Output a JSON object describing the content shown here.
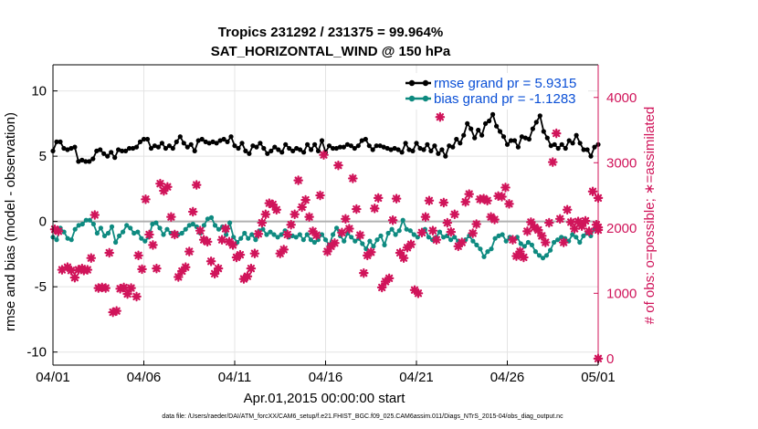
{
  "chart_data": {
    "type": "line",
    "title": "Tropics 231292 / 231375 = 99.964%",
    "subtitle": "SAT_HORIZONTAL_WIND @ 150 hPa",
    "xlabel": "Apr.01,2015 00:00:00 start",
    "ylabel": "rmse and bias (model - observation)",
    "ylabel_right": "# of obs: o=possible; ∗=assimilated",
    "footnote": "data file: /Users/raeder/DAI/ATM_forcXX/CAM6_setup/f.e21.FHIST_BGC.f09_025.CAM6assim.011/Diags_NTrS_2015-04/obs_diag_output.nc",
    "x_tick_labels": [
      "04/01",
      "04/06",
      "04/11",
      "04/16",
      "04/21",
      "04/26",
      "05/01"
    ],
    "x_tick_days": [
      0,
      5,
      10,
      15,
      20,
      25,
      30
    ],
    "xlim_days": [
      0,
      30
    ],
    "ylim": [
      -11,
      12
    ],
    "y_ticks": [
      -10,
      -5,
      0,
      5,
      10
    ],
    "y_tick_labels": [
      "-10",
      "-5",
      "0",
      "5",
      "10"
    ],
    "ylim_right": [
      -100,
      4500
    ],
    "y_ticks_right": [
      0,
      1000,
      2000,
      3000,
      4000
    ],
    "y_tick_labels_right": [
      "0",
      "1000",
      "2000",
      "3000",
      "4000"
    ],
    "grid": true,
    "legend_position": "top-right",
    "colors": {
      "rmse": "#000000",
      "bias": "#0e8a80",
      "obs": "#d0145a",
      "zero_line": "#b0b0b0",
      "grid": "#e4e4e4"
    },
    "series": [
      {
        "name": "rmse grand pr = 5.9315",
        "values": [
          5.4,
          6.1,
          6.1,
          5.6,
          5.5,
          5.6,
          5.7,
          4.6,
          4.7,
          4.6,
          4.6,
          4.8,
          5.4,
          5.5,
          5.2,
          5.0,
          5.3,
          4.9,
          5.5,
          5.4,
          5.4,
          5.6,
          5.6,
          5.7,
          6.1,
          6.3,
          6.3,
          5.6,
          5.8,
          5.7,
          6.0,
          5.6,
          5.8,
          5.6,
          6.1,
          6.5,
          6.0,
          5.7,
          5.9,
          5.4,
          6.2,
          6.3,
          6.1,
          6.0,
          6.1,
          6.0,
          6.2,
          6.3,
          6.1,
          6.5,
          5.8,
          5.6,
          6.0,
          5.4,
          5.2,
          5.8,
          5.7,
          6.0,
          5.6,
          5.2,
          5.4,
          5.7,
          5.5,
          5.3,
          5.9,
          5.6,
          5.4,
          5.6,
          5.5,
          5.3,
          5.9,
          5.5,
          5.9,
          5.4,
          6.2,
          5.3,
          5.8,
          5.6,
          5.6,
          5.7,
          5.7,
          5.9,
          5.8,
          5.6,
          5.8,
          6.2,
          6.3,
          5.8,
          5.5,
          5.8,
          5.8,
          5.7,
          5.6,
          5.5,
          5.6,
          5.5,
          5.3,
          6.0,
          5.5,
          5.4,
          6.0,
          5.6,
          5.5,
          5.9,
          5.4,
          5.8,
          5.2,
          5.5,
          5.0,
          5.8,
          5.7,
          6.3,
          6.0,
          6.6,
          7.5,
          7.1,
          6.4,
          7.0,
          6.6,
          7.5,
          7.7,
          8.2,
          7.3,
          6.9,
          6.5,
          5.9,
          6.2,
          6.2,
          5.7,
          6.5,
          6.4,
          6.3,
          7.1,
          7.6,
          8.1,
          6.9,
          6.4,
          5.8,
          5.9,
          5.6,
          5.9,
          5.6,
          6.2,
          6.0,
          6.6,
          6.0,
          5.5,
          5.5,
          5.0,
          5.7,
          5.9
        ]
      },
      {
        "name": "bias grand pr = -1.1283",
        "values": [
          -1.2,
          -1.4,
          -0.5,
          -0.8,
          -1.3,
          -1.4,
          -0.6,
          -0.3,
          -0.2,
          0.1,
          0.1,
          -0.2,
          -0.9,
          -0.5,
          -1.1,
          -0.9,
          -0.4,
          -1.6,
          -1.1,
          -0.8,
          -0.3,
          -0.5,
          -0.9,
          -0.8,
          -1.3,
          -1.5,
          -1.2,
          -0.2,
          -0.1,
          -0.5,
          -1.0,
          -0.6,
          -0.9,
          -0.9,
          -1.0,
          -0.9,
          -0.6,
          -0.3,
          -0.2,
          -0.4,
          -0.9,
          -0.3,
          0.2,
          0.3,
          -0.3,
          -0.6,
          -0.4,
          -1.0,
          -0.1,
          -1.2,
          -1.6,
          -1.3,
          -0.9,
          -1.3,
          -1.0,
          -1.4,
          -0.7,
          -0.6,
          -1.0,
          -0.8,
          -1.0,
          -1.2,
          -1.0,
          -0.7,
          -1.2,
          -1.1,
          -1.2,
          -1.0,
          -1.4,
          -1.0,
          -1.4,
          -1.6,
          -1.4,
          -1.0,
          -1.4,
          -1.8,
          -1.0,
          -0.5,
          -1.1,
          -1.5,
          -0.9,
          -1.2,
          -1.5,
          -1.3,
          -1.7,
          -2.1,
          -1.5,
          -1.9,
          -1.4,
          -1.1,
          -1.8,
          -0.9,
          -0.6,
          -1.0,
          -0.7,
          0.1,
          -0.6,
          -0.7,
          -1.0,
          -1.2,
          -0.9,
          -0.6,
          -1.2,
          -1.4,
          -1.2,
          -0.8,
          -1.2,
          -1.1,
          -1.4,
          -1.2,
          -1.5,
          -1.6,
          -1.4,
          -1.1,
          -1.5,
          -1.8,
          -2.1,
          -2.7,
          -2.3,
          -2.1,
          -1.3,
          -1.1,
          -1.0,
          -1.5,
          -1.2,
          -1.4,
          -1.2,
          -1.7,
          -1.9,
          -1.6,
          -1.8,
          -2.3,
          -2.6,
          -2.8,
          -2.6,
          -2.2,
          -1.6,
          -1.4,
          -1.2,
          -1.3,
          -1.5,
          -1.0,
          -1.2,
          -1.6,
          -1.1,
          -0.9,
          -1.1,
          -0.6,
          -0.6
        ]
      }
    ],
    "obs_assimilated": [
      [
        0.1,
        1980
      ],
      [
        0.3,
        1950
      ],
      [
        0.5,
        1360
      ],
      [
        0.8,
        1400
      ],
      [
        1.0,
        1350
      ],
      [
        1.2,
        1240
      ],
      [
        1.4,
        1360
      ],
      [
        1.6,
        1380
      ],
      [
        1.7,
        1350
      ],
      [
        1.9,
        1360
      ],
      [
        2.1,
        1540
      ],
      [
        2.3,
        2200
      ],
      [
        2.5,
        1080
      ],
      [
        2.7,
        1090
      ],
      [
        2.9,
        1080
      ],
      [
        3.1,
        1620
      ],
      [
        3.3,
        710
      ],
      [
        3.5,
        730
      ],
      [
        3.7,
        1070
      ],
      [
        3.9,
        1090
      ],
      [
        4.1,
        990
      ],
      [
        4.3,
        1080
      ],
      [
        4.6,
        950
      ],
      [
        4.7,
        1580
      ],
      [
        4.9,
        1370
      ],
      [
        5.1,
        2440
      ],
      [
        5.3,
        1900
      ],
      [
        5.5,
        1740
      ],
      [
        5.7,
        1380
      ],
      [
        5.9,
        2680
      ],
      [
        6.1,
        2570
      ],
      [
        6.3,
        2630
      ],
      [
        6.5,
        2170
      ],
      [
        6.7,
        1900
      ],
      [
        6.9,
        1250
      ],
      [
        7.1,
        1340
      ],
      [
        7.3,
        1400
      ],
      [
        7.5,
        1640
      ],
      [
        7.7,
        2250
      ],
      [
        7.9,
        2660
      ],
      [
        8.1,
        1960
      ],
      [
        8.3,
        1820
      ],
      [
        8.5,
        1790
      ],
      [
        8.7,
        1490
      ],
      [
        8.9,
        1300
      ],
      [
        9.1,
        1380
      ],
      [
        9.3,
        1820
      ],
      [
        9.5,
        1990
      ],
      [
        9.7,
        1790
      ],
      [
        9.9,
        1740
      ],
      [
        10.1,
        1550
      ],
      [
        10.3,
        1590
      ],
      [
        10.5,
        1220
      ],
      [
        10.7,
        1260
      ],
      [
        10.9,
        1380
      ],
      [
        11.1,
        1610
      ],
      [
        11.3,
        1910
      ],
      [
        11.5,
        2080
      ],
      [
        11.7,
        2210
      ],
      [
        11.9,
        2380
      ],
      [
        12.1,
        2360
      ],
      [
        12.3,
        2280
      ],
      [
        12.5,
        1610
      ],
      [
        12.7,
        1670
      ],
      [
        12.9,
        1900
      ],
      [
        13.1,
        2050
      ],
      [
        13.3,
        2210
      ],
      [
        13.5,
        2730
      ],
      [
        13.7,
        2320
      ],
      [
        13.9,
        2430
      ],
      [
        14.1,
        2170
      ],
      [
        14.3,
        1950
      ],
      [
        14.5,
        1890
      ],
      [
        14.7,
        2500
      ],
      [
        14.9,
        3120
      ],
      [
        15.1,
        1640
      ],
      [
        15.3,
        1720
      ],
      [
        15.5,
        1770
      ],
      [
        15.7,
        2960
      ],
      [
        15.9,
        1930
      ],
      [
        16.1,
        2140
      ],
      [
        16.3,
        1990
      ],
      [
        16.5,
        2760
      ],
      [
        16.7,
        2290
      ],
      [
        16.9,
        1890
      ],
      [
        17.1,
        1310
      ],
      [
        17.3,
        1580
      ],
      [
        17.5,
        1630
      ],
      [
        17.7,
        2300
      ],
      [
        17.9,
        2460
      ],
      [
        18.1,
        1090
      ],
      [
        18.3,
        1180
      ],
      [
        18.5,
        1230
      ],
      [
        18.7,
        2120
      ],
      [
        18.9,
        2450
      ],
      [
        19.1,
        1620
      ],
      [
        19.3,
        1540
      ],
      [
        19.5,
        1700
      ],
      [
        19.7,
        1750
      ],
      [
        19.9,
        1050
      ],
      [
        20.1,
        1000
      ],
      [
        20.3,
        1930
      ],
      [
        20.5,
        2170
      ],
      [
        20.7,
        2420
      ],
      [
        20.9,
        1960
      ],
      [
        21.1,
        1820
      ],
      [
        21.3,
        3700
      ],
      [
        21.5,
        2390
      ],
      [
        21.7,
        2080
      ],
      [
        21.9,
        1940
      ],
      [
        22.1,
        2210
      ],
      [
        22.3,
        1720
      ],
      [
        22.5,
        1780
      ],
      [
        22.7,
        2400
      ],
      [
        22.9,
        2520
      ],
      [
        23.1,
        1920
      ],
      [
        23.3,
        2060
      ],
      [
        23.5,
        2440
      ],
      [
        23.7,
        2450
      ],
      [
        23.9,
        2420
      ],
      [
        24.1,
        2170
      ],
      [
        24.3,
        2130
      ],
      [
        24.5,
        2490
      ],
      [
        24.7,
        2480
      ],
      [
        24.9,
        2620
      ],
      [
        25.1,
        2370
      ],
      [
        25.3,
        1820
      ],
      [
        25.5,
        1570
      ],
      [
        25.7,
        1640
      ],
      [
        25.9,
        1550
      ],
      [
        26.1,
        1950
      ],
      [
        26.3,
        2090
      ],
      [
        26.5,
        2010
      ],
      [
        26.7,
        1970
      ],
      [
        26.9,
        1880
      ],
      [
        27.1,
        1780
      ],
      [
        27.3,
        2080
      ],
      [
        27.5,
        3010
      ],
      [
        27.7,
        3450
      ],
      [
        27.9,
        2140
      ],
      [
        28.1,
        1780
      ],
      [
        28.3,
        2280
      ],
      [
        28.5,
        2090
      ],
      [
        28.7,
        1990
      ],
      [
        28.9,
        2100
      ],
      [
        29.1,
        2030
      ],
      [
        29.3,
        2110
      ],
      [
        29.5,
        1950
      ],
      [
        29.7,
        2560
      ],
      [
        29.9,
        2050
      ],
      [
        30.1,
        2010
      ],
      [
        30.3,
        1970
      ],
      [
        30.6,
        2460
      ],
      [
        30.9,
        0
      ]
    ]
  }
}
